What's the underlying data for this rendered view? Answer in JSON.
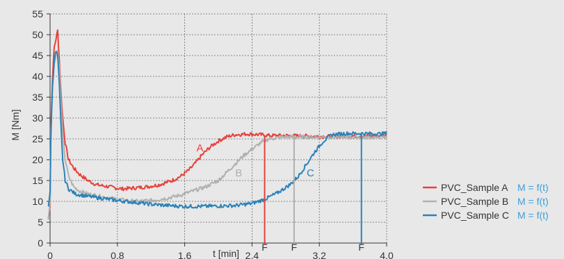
{
  "chart_data": {
    "type": "line",
    "xlabel": "t [min]",
    "ylabel": "M [Nm]",
    "xlim": [
      0,
      4.0
    ],
    "ylim": [
      0,
      55
    ],
    "x_ticks": [
      0,
      0.8,
      1.6,
      2.4,
      3.2,
      4.0
    ],
    "x_tick_labels": [
      "0",
      "0,8",
      "1,6",
      "2,4",
      "3,2",
      "4,0"
    ],
    "y_ticks": [
      0,
      5,
      10,
      15,
      20,
      25,
      30,
      35,
      40,
      45,
      50,
      55
    ],
    "y_tick_labels": [
      "0",
      "5",
      "10",
      "15",
      "20",
      "25",
      "30",
      "35",
      "40",
      "45",
      "50",
      "55"
    ],
    "grid": true,
    "legend_position": "bottom-right",
    "series": [
      {
        "name": "PVC_Sample A",
        "formula": "M = f(t)",
        "label": "A",
        "label_at": [
          1.74,
          22
        ],
        "color": "#e8403a",
        "points": [
          [
            -0.02,
            6
          ],
          [
            0,
            9
          ],
          [
            0.01,
            28
          ],
          [
            0.03,
            40
          ],
          [
            0.05,
            47
          ],
          [
            0.07,
            49
          ],
          [
            0.09,
            51
          ],
          [
            0.11,
            44
          ],
          [
            0.13,
            36
          ],
          [
            0.15,
            30
          ],
          [
            0.18,
            24
          ],
          [
            0.22,
            20
          ],
          [
            0.28,
            18
          ],
          [
            0.35,
            16.5
          ],
          [
            0.45,
            15
          ],
          [
            0.55,
            14
          ],
          [
            0.7,
            13.5
          ],
          [
            0.85,
            13
          ],
          [
            1.0,
            13.2
          ],
          [
            1.15,
            13.5
          ],
          [
            1.3,
            14
          ],
          [
            1.45,
            15
          ],
          [
            1.55,
            16
          ],
          [
            1.65,
            17.5
          ],
          [
            1.72,
            19
          ],
          [
            1.8,
            21
          ],
          [
            1.9,
            23
          ],
          [
            2.0,
            24.5
          ],
          [
            2.1,
            25.5
          ],
          [
            2.2,
            26
          ],
          [
            2.35,
            26.2
          ],
          [
            2.5,
            26
          ],
          [
            2.6,
            25.8
          ],
          [
            2.8,
            25.8
          ],
          [
            3.0,
            25.7
          ],
          [
            3.2,
            25.6
          ],
          [
            3.4,
            25.6
          ],
          [
            3.6,
            25.7
          ],
          [
            3.8,
            25.7
          ],
          [
            4.0,
            25.8
          ]
        ],
        "failure_at": 2.55
      },
      {
        "name": "PVC_Sample B",
        "formula": "M = f(t)",
        "label": "B",
        "label_at": [
          2.2,
          16
        ],
        "color": "#b0b0b0",
        "points": [
          [
            -0.02,
            6
          ],
          [
            0,
            10
          ],
          [
            0.01,
            27
          ],
          [
            0.03,
            38
          ],
          [
            0.05,
            43
          ],
          [
            0.07,
            45
          ],
          [
            0.09,
            46
          ],
          [
            0.11,
            42
          ],
          [
            0.13,
            34
          ],
          [
            0.15,
            26
          ],
          [
            0.18,
            20
          ],
          [
            0.22,
            16
          ],
          [
            0.28,
            13.5
          ],
          [
            0.35,
            12.5
          ],
          [
            0.45,
            11.8
          ],
          [
            0.6,
            11.2
          ],
          [
            0.8,
            10.5
          ],
          [
            1.0,
            10
          ],
          [
            1.2,
            10.2
          ],
          [
            1.4,
            10.8
          ],
          [
            1.55,
            11.5
          ],
          [
            1.7,
            12.5
          ],
          [
            1.85,
            13.5
          ],
          [
            2.0,
            15
          ],
          [
            2.1,
            17
          ],
          [
            2.2,
            19
          ],
          [
            2.3,
            21
          ],
          [
            2.4,
            22.5
          ],
          [
            2.5,
            24
          ],
          [
            2.6,
            25
          ],
          [
            2.8,
            25.5
          ],
          [
            3.0,
            25.5
          ],
          [
            3.2,
            25.4
          ],
          [
            3.4,
            25.4
          ],
          [
            3.6,
            25.4
          ],
          [
            3.8,
            25.4
          ],
          [
            4.0,
            25.4
          ]
        ],
        "failure_at": 2.9
      },
      {
        "name": "PVC_Sample C",
        "formula": "M = f(t)",
        "label": "C",
        "label_at": [
          3.05,
          16
        ],
        "color": "#2b82b8",
        "points": [
          [
            -0.02,
            9
          ],
          [
            0,
            12
          ],
          [
            0.01,
            26
          ],
          [
            0.03,
            38
          ],
          [
            0.05,
            44
          ],
          [
            0.07,
            46
          ],
          [
            0.09,
            45
          ],
          [
            0.11,
            38
          ],
          [
            0.13,
            28
          ],
          [
            0.15,
            20
          ],
          [
            0.18,
            15
          ],
          [
            0.22,
            13
          ],
          [
            0.3,
            11.8
          ],
          [
            0.45,
            11.2
          ],
          [
            0.6,
            10.8
          ],
          [
            0.8,
            10.2
          ],
          [
            1.0,
            9.8
          ],
          [
            1.2,
            9.3
          ],
          [
            1.4,
            9
          ],
          [
            1.6,
            8.8
          ],
          [
            1.8,
            8.8
          ],
          [
            2.0,
            8.9
          ],
          [
            2.2,
            9
          ],
          [
            2.4,
            9.5
          ],
          [
            2.55,
            10.5
          ],
          [
            2.7,
            12
          ],
          [
            2.85,
            14
          ],
          [
            2.95,
            16
          ],
          [
            3.05,
            19
          ],
          [
            3.15,
            22
          ],
          [
            3.25,
            24.5
          ],
          [
            3.35,
            26
          ],
          [
            3.5,
            26.3
          ],
          [
            3.7,
            26.3
          ],
          [
            3.9,
            26.2
          ],
          [
            4.0,
            26.3
          ]
        ],
        "failure_at": 3.7
      }
    ],
    "failure_marker_label": "F"
  }
}
